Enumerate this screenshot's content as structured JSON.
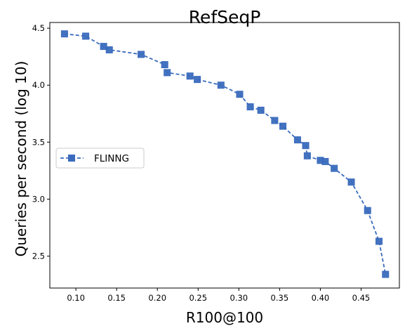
{
  "chart_data": {
    "type": "line",
    "title": "RefSeqP",
    "xlabel": "R100@100",
    "ylabel": "Queries per second (log 10)",
    "xlim": [
      0.068,
      0.497
    ],
    "ylim": [
      2.22,
      4.55
    ],
    "xticks": [
      "0.10",
      "0.15",
      "0.20",
      "0.25",
      "0.30",
      "0.35",
      "0.40",
      "0.45"
    ],
    "xtick_values": [
      0.1,
      0.15,
      0.2,
      0.25,
      0.3,
      0.35,
      0.4,
      0.45
    ],
    "yticks": [
      "2.5",
      "3.0",
      "3.5",
      "4.0",
      "4.5"
    ],
    "ytick_values": [
      2.5,
      3.0,
      3.5,
      4.0,
      4.5
    ],
    "grid": false,
    "legend_position": "center-left",
    "series": [
      {
        "name": "FLINNG",
        "color": "#3a6bbd",
        "line_style": "dashed",
        "marker": "square",
        "points": [
          {
            "x": 0.086,
            "y": 4.45
          },
          {
            "x": 0.112,
            "y": 4.43
          },
          {
            "x": 0.134,
            "y": 4.34
          },
          {
            "x": 0.141,
            "y": 4.31
          },
          {
            "x": 0.18,
            "y": 4.27
          },
          {
            "x": 0.209,
            "y": 4.18
          },
          {
            "x": 0.212,
            "y": 4.11
          },
          {
            "x": 0.24,
            "y": 4.08
          },
          {
            "x": 0.249,
            "y": 4.05
          },
          {
            "x": 0.278,
            "y": 4.0
          },
          {
            "x": 0.301,
            "y": 3.92
          },
          {
            "x": 0.314,
            "y": 3.81
          },
          {
            "x": 0.327,
            "y": 3.78
          },
          {
            "x": 0.344,
            "y": 3.69
          },
          {
            "x": 0.354,
            "y": 3.64
          },
          {
            "x": 0.372,
            "y": 3.52
          },
          {
            "x": 0.382,
            "y": 3.47
          },
          {
            "x": 0.384,
            "y": 3.38
          },
          {
            "x": 0.4,
            "y": 3.34
          },
          {
            "x": 0.406,
            "y": 3.33
          },
          {
            "x": 0.417,
            "y": 3.27
          },
          {
            "x": 0.438,
            "y": 3.15
          },
          {
            "x": 0.458,
            "y": 2.9
          },
          {
            "x": 0.472,
            "y": 2.63
          },
          {
            "x": 0.48,
            "y": 2.34
          }
        ]
      }
    ]
  }
}
